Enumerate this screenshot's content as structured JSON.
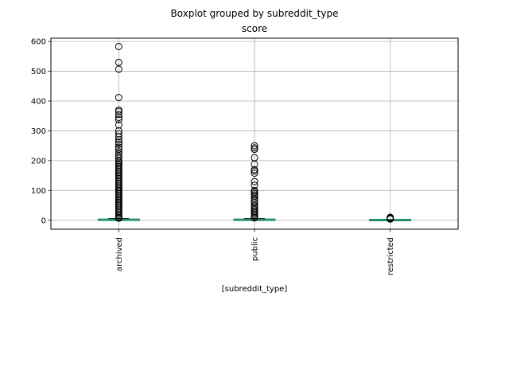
{
  "chart_data": {
    "type": "boxplot",
    "suptitle": "Boxplot grouped by subreddit_type",
    "title": "score",
    "xlabel": "[subreddit_type]",
    "ylabel": "",
    "categories": [
      "archived",
      "public",
      "restricted"
    ],
    "ylim": [
      -30,
      611
    ],
    "yticks": [
      0,
      100,
      200,
      300,
      400,
      500,
      600
    ],
    "grid": true,
    "colors": {
      "box": "#1f77b4",
      "median": "#2ca02c",
      "whisker": "#000000",
      "flier": "#000000",
      "grid": "#b0b0b0"
    },
    "boxes": [
      {
        "category": "archived",
        "q1": 1,
        "median": 2,
        "q3": 3,
        "whislo": 1,
        "whishi": 6,
        "fliers": [
          583,
          530,
          507,
          412,
          370,
          365,
          355,
          345,
          338,
          320,
          300,
          290,
          280,
          270,
          262,
          255,
          245,
          238,
          230,
          222,
          215,
          208,
          200,
          195,
          190,
          185,
          180,
          175,
          170,
          165,
          160,
          155,
          150,
          145,
          140,
          135,
          130,
          125,
          120,
          115,
          110,
          105,
          100,
          95,
          90,
          85,
          80,
          75,
          70,
          65,
          60,
          55,
          50,
          45,
          40,
          35,
          30,
          25,
          20,
          15,
          10,
          8,
          7
        ]
      },
      {
        "category": "public",
        "q1": 1,
        "median": 2,
        "q3": 3,
        "whislo": 1,
        "whishi": 6,
        "fliers": [
          250,
          243,
          238,
          210,
          188,
          170,
          165,
          158,
          130,
          118,
          100,
          95,
          90,
          85,
          80,
          72,
          65,
          58,
          50,
          45,
          40,
          35,
          30,
          25,
          20,
          15,
          10,
          8
        ]
      },
      {
        "category": "restricted",
        "q1": 1,
        "median": 1,
        "q3": 2,
        "whislo": 1,
        "whishi": 2,
        "fliers": [
          10,
          8,
          6,
          4
        ]
      }
    ]
  }
}
